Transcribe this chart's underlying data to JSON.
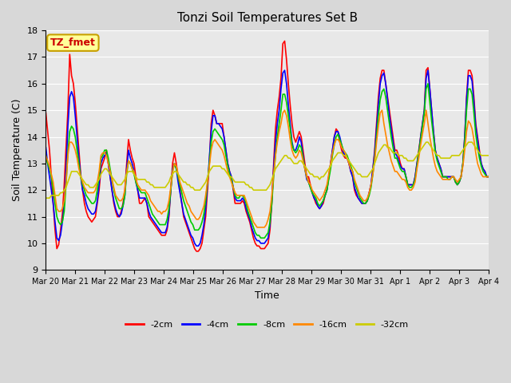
{
  "title": "Tonzi Soil Temperatures Set B",
  "xlabel": "Time",
  "ylabel": "Soil Temperature (C)",
  "ylim": [
    9.0,
    18.0
  ],
  "yticks": [
    9.0,
    10.0,
    11.0,
    12.0,
    13.0,
    14.0,
    15.0,
    16.0,
    17.0,
    18.0
  ],
  "bg_color": "#d8d8d8",
  "plot_bg_color": "#e8e8e8",
  "grid_color": "#ffffff",
  "legend_label": "TZ_fmet",
  "legend_box_color": "#ffff99",
  "legend_box_edge": "#c8a000",
  "series_colors": {
    "-2cm": "#ff0000",
    "-4cm": "#0000ff",
    "-8cm": "#00cc00",
    "-16cm": "#ff8800",
    "-32cm": "#cccc00"
  },
  "num_days": 15,
  "x_tick_labels": [
    "Mar 20",
    "Mar 21",
    "Mar 22",
    "Mar 23",
    "Mar 24",
    "Mar 25",
    "Mar 26",
    "Mar 27",
    "Mar 28",
    "Mar 29",
    "Mar 30",
    "Mar 31",
    "Apr 1",
    "Apr 2",
    "Apr 3",
    "Apr 4"
  ],
  "depth_2cm": [
    14.9,
    14.2,
    13.5,
    12.5,
    11.5,
    10.5,
    9.8,
    9.95,
    10.5,
    11.1,
    12.2,
    13.6,
    15.0,
    17.1,
    16.3,
    16.0,
    15.3,
    14.4,
    13.5,
    12.6,
    12.0,
    11.5,
    11.2,
    11.0,
    10.9,
    10.8,
    10.9,
    11.0,
    11.5,
    12.0,
    12.8,
    13.0,
    13.2,
    13.5,
    13.0,
    12.5,
    12.0,
    11.5,
    11.2,
    11.0,
    11.0,
    11.2,
    11.5,
    12.0,
    13.0,
    13.9,
    13.5,
    13.2,
    13.0,
    12.5,
    12.0,
    11.5,
    11.5,
    11.6,
    11.7,
    11.5,
    11.0,
    10.9,
    10.8,
    10.7,
    10.6,
    10.5,
    10.4,
    10.3,
    10.3,
    10.3,
    10.5,
    11.0,
    12.0,
    13.0,
    13.4,
    13.0,
    12.5,
    12.0,
    11.5,
    11.0,
    10.8,
    10.6,
    10.4,
    10.2,
    10.0,
    9.8,
    9.7,
    9.7,
    9.8,
    10.0,
    10.5,
    11.0,
    12.0,
    13.0,
    14.5,
    15.0,
    14.8,
    14.5,
    14.5,
    14.5,
    14.5,
    14.0,
    13.5,
    13.0,
    12.7,
    12.5,
    12.0,
    11.5,
    11.5,
    11.5,
    11.5,
    11.6,
    11.5,
    11.2,
    11.0,
    10.8,
    10.5,
    10.2,
    10.0,
    9.9,
    9.9,
    9.8,
    9.8,
    9.8,
    9.9,
    10.0,
    10.5,
    11.5,
    13.0,
    14.3,
    15.0,
    15.5,
    16.2,
    17.5,
    17.6,
    16.9,
    16.0,
    15.2,
    14.5,
    14.0,
    13.8,
    14.0,
    14.2,
    14.0,
    13.5,
    13.0,
    12.5,
    12.5,
    12.2,
    11.9,
    11.7,
    11.5,
    11.4,
    11.3,
    11.4,
    11.5,
    11.8,
    12.0,
    12.5,
    13.0,
    13.5,
    14.0,
    14.3,
    14.2,
    13.8,
    13.5,
    13.3,
    13.2,
    13.2,
    13.0,
    12.7,
    12.5,
    12.0,
    11.8,
    11.7,
    11.6,
    11.5,
    11.5,
    11.5,
    11.6,
    11.9,
    12.2,
    12.8,
    13.5,
    14.5,
    15.5,
    16.2,
    16.5,
    16.5,
    16.0,
    15.5,
    15.0,
    14.5,
    14.0,
    13.5,
    13.5,
    13.3,
    13.0,
    12.8,
    12.8,
    12.5,
    12.2,
    12.2,
    12.2,
    12.2,
    12.5,
    13.0,
    13.5,
    14.0,
    14.5,
    15.0,
    16.5,
    16.6,
    15.8,
    15.0,
    14.2,
    13.5,
    13.2,
    13.0,
    12.8,
    12.5,
    12.5,
    12.5,
    12.5,
    12.5,
    12.5,
    12.5,
    12.3,
    12.2,
    12.3,
    12.5,
    13.0,
    14.0,
    15.5,
    16.5,
    16.5,
    16.3,
    15.5,
    14.5,
    14.0,
    13.5,
    13.0,
    12.8,
    12.7,
    12.5,
    12.5
  ],
  "depth_4cm": [
    13.6,
    13.0,
    12.5,
    12.0,
    11.5,
    10.8,
    10.2,
    10.1,
    10.3,
    10.8,
    11.5,
    12.8,
    14.4,
    15.5,
    15.7,
    15.5,
    14.8,
    14.0,
    13.2,
    12.5,
    12.0,
    11.8,
    11.5,
    11.3,
    11.2,
    11.1,
    11.1,
    11.2,
    11.6,
    12.2,
    13.0,
    13.2,
    13.3,
    13.4,
    13.0,
    12.5,
    12.0,
    11.6,
    11.3,
    11.1,
    11.0,
    11.1,
    11.4,
    11.8,
    12.8,
    13.5,
    13.2,
    13.0,
    12.7,
    12.3,
    12.0,
    11.7,
    11.7,
    11.7,
    11.7,
    11.5,
    11.2,
    11.0,
    10.9,
    10.8,
    10.7,
    10.6,
    10.5,
    10.4,
    10.4,
    10.4,
    10.6,
    11.1,
    12.0,
    12.8,
    13.0,
    12.8,
    12.3,
    11.9,
    11.5,
    11.1,
    10.9,
    10.7,
    10.5,
    10.3,
    10.2,
    10.0,
    9.9,
    9.9,
    10.0,
    10.3,
    10.7,
    11.3,
    12.2,
    13.2,
    14.2,
    14.8,
    14.8,
    14.5,
    14.5,
    14.4,
    14.3,
    14.0,
    13.5,
    13.0,
    12.7,
    12.5,
    12.1,
    11.7,
    11.6,
    11.6,
    11.6,
    11.7,
    11.6,
    11.3,
    11.1,
    10.9,
    10.6,
    10.4,
    10.2,
    10.1,
    10.1,
    10.0,
    10.0,
    10.0,
    10.1,
    10.2,
    10.7,
    11.6,
    12.8,
    13.8,
    14.5,
    15.0,
    15.8,
    16.4,
    16.5,
    16.0,
    15.2,
    14.5,
    13.8,
    13.5,
    13.5,
    13.7,
    14.0,
    13.8,
    13.3,
    12.8,
    12.4,
    12.3,
    12.1,
    11.9,
    11.7,
    11.6,
    11.4,
    11.3,
    11.4,
    11.6,
    11.8,
    12.0,
    12.5,
    13.0,
    13.5,
    14.0,
    14.2,
    14.2,
    14.0,
    13.7,
    13.4,
    13.3,
    13.2,
    13.0,
    12.7,
    12.5,
    12.1,
    11.9,
    11.7,
    11.6,
    11.5,
    11.5,
    11.5,
    11.6,
    11.9,
    12.2,
    12.8,
    13.4,
    14.3,
    15.2,
    16.0,
    16.3,
    16.4,
    16.0,
    15.4,
    14.8,
    14.3,
    13.8,
    13.4,
    13.3,
    13.1,
    12.9,
    12.8,
    12.8,
    12.5,
    12.2,
    12.2,
    12.2,
    12.2,
    12.5,
    13.0,
    13.4,
    14.0,
    14.5,
    15.0,
    16.2,
    16.5,
    15.8,
    15.0,
    14.2,
    13.5,
    13.2,
    13.0,
    12.8,
    12.5,
    12.5,
    12.5,
    12.5,
    12.5,
    12.5,
    12.5,
    12.3,
    12.2,
    12.3,
    12.5,
    13.0,
    14.0,
    15.4,
    16.3,
    16.3,
    16.1,
    15.3,
    14.4,
    13.9,
    13.4,
    13.0,
    12.8,
    12.7,
    12.5,
    12.5
  ],
  "depth_8cm": [
    13.3,
    13.0,
    12.8,
    12.5,
    12.0,
    11.5,
    11.0,
    10.8,
    10.7,
    10.8,
    11.2,
    12.2,
    13.4,
    14.2,
    14.4,
    14.3,
    14.0,
    13.5,
    13.0,
    12.5,
    12.2,
    12.0,
    11.8,
    11.7,
    11.6,
    11.5,
    11.5,
    11.6,
    12.0,
    12.5,
    13.2,
    13.3,
    13.5,
    13.5,
    13.2,
    12.8,
    12.4,
    12.0,
    11.7,
    11.5,
    11.3,
    11.3,
    11.4,
    11.8,
    12.6,
    13.1,
    13.0,
    12.8,
    12.6,
    12.3,
    12.1,
    12.0,
    11.9,
    11.9,
    11.9,
    11.7,
    11.5,
    11.3,
    11.1,
    11.0,
    10.9,
    10.8,
    10.7,
    10.7,
    10.7,
    10.7,
    10.9,
    11.3,
    12.0,
    12.7,
    13.0,
    12.8,
    12.5,
    12.2,
    11.9,
    11.6,
    11.4,
    11.2,
    11.0,
    10.8,
    10.7,
    10.5,
    10.5,
    10.5,
    10.6,
    10.8,
    11.1,
    11.6,
    12.3,
    13.0,
    13.8,
    14.2,
    14.3,
    14.2,
    14.1,
    14.0,
    13.9,
    13.7,
    13.3,
    12.9,
    12.6,
    12.4,
    12.1,
    11.8,
    11.7,
    11.7,
    11.8,
    11.8,
    11.7,
    11.5,
    11.2,
    11.0,
    10.8,
    10.6,
    10.4,
    10.3,
    10.3,
    10.2,
    10.2,
    10.2,
    10.3,
    10.4,
    10.8,
    11.5,
    12.5,
    13.3,
    14.0,
    14.5,
    15.0,
    15.6,
    15.6,
    15.3,
    14.8,
    14.3,
    13.7,
    13.5,
    13.4,
    13.5,
    13.7,
    13.6,
    13.2,
    12.8,
    12.5,
    12.3,
    12.1,
    11.9,
    11.8,
    11.7,
    11.5,
    11.4,
    11.5,
    11.6,
    11.8,
    12.0,
    12.4,
    12.8,
    13.3,
    13.7,
    14.0,
    14.1,
    13.9,
    13.7,
    13.5,
    13.4,
    13.3,
    13.1,
    12.9,
    12.7,
    12.3,
    12.1,
    11.9,
    11.7,
    11.6,
    11.5,
    11.5,
    11.6,
    11.8,
    12.1,
    12.6,
    13.2,
    14.0,
    14.8,
    15.4,
    15.7,
    15.8,
    15.5,
    15.0,
    14.5,
    14.0,
    13.6,
    13.2,
    13.2,
    13.0,
    12.8,
    12.7,
    12.7,
    12.5,
    12.2,
    12.1,
    12.1,
    12.2,
    12.4,
    12.9,
    13.4,
    13.9,
    14.4,
    14.9,
    15.8,
    16.0,
    15.3,
    14.6,
    14.0,
    13.4,
    13.1,
    12.9,
    12.7,
    12.5,
    12.5,
    12.5,
    12.4,
    12.4,
    12.5,
    12.5,
    12.3,
    12.2,
    12.3,
    12.5,
    13.0,
    13.8,
    15.0,
    15.8,
    15.8,
    15.6,
    14.9,
    14.1,
    13.6,
    13.2,
    12.9,
    12.7,
    12.6,
    12.5,
    12.5
  ],
  "depth_16cm": [
    13.3,
    13.1,
    12.9,
    12.6,
    12.3,
    11.8,
    11.3,
    11.2,
    11.2,
    11.3,
    11.6,
    12.3,
    13.3,
    13.8,
    13.8,
    13.7,
    13.5,
    13.2,
    12.8,
    12.5,
    12.3,
    12.1,
    12.0,
    11.9,
    11.9,
    11.9,
    11.9,
    12.0,
    12.3,
    12.7,
    13.3,
    13.4,
    13.4,
    13.3,
    13.0,
    12.7,
    12.4,
    12.1,
    11.8,
    11.7,
    11.6,
    11.6,
    11.7,
    12.0,
    12.7,
    13.1,
    13.0,
    12.8,
    12.7,
    12.4,
    12.2,
    12.1,
    12.0,
    12.0,
    12.0,
    11.9,
    11.8,
    11.6,
    11.5,
    11.4,
    11.3,
    11.2,
    11.2,
    11.1,
    11.2,
    11.2,
    11.3,
    11.6,
    12.1,
    12.7,
    13.0,
    12.9,
    12.6,
    12.3,
    12.1,
    11.9,
    11.7,
    11.5,
    11.4,
    11.2,
    11.1,
    11.0,
    10.9,
    10.9,
    11.0,
    11.2,
    11.4,
    11.8,
    12.3,
    12.9,
    13.5,
    13.8,
    13.9,
    13.8,
    13.7,
    13.6,
    13.5,
    13.3,
    13.0,
    12.7,
    12.5,
    12.3,
    12.1,
    11.9,
    11.8,
    11.8,
    11.8,
    11.8,
    11.8,
    11.6,
    11.4,
    11.2,
    11.0,
    10.8,
    10.7,
    10.6,
    10.6,
    10.6,
    10.6,
    10.6,
    10.7,
    10.9,
    11.2,
    11.8,
    12.6,
    13.3,
    13.8,
    14.2,
    14.5,
    14.9,
    15.0,
    14.8,
    14.4,
    13.9,
    13.5,
    13.3,
    13.2,
    13.3,
    13.5,
    13.4,
    13.1,
    12.8,
    12.5,
    12.3,
    12.2,
    12.0,
    11.9,
    11.8,
    11.7,
    11.6,
    11.7,
    11.8,
    12.0,
    12.2,
    12.6,
    13.0,
    13.4,
    13.7,
    13.9,
    13.9,
    13.8,
    13.6,
    13.5,
    13.4,
    13.2,
    13.0,
    12.8,
    12.7,
    12.4,
    12.2,
    12.0,
    11.8,
    11.7,
    11.6,
    11.6,
    11.7,
    11.9,
    12.2,
    12.6,
    13.1,
    13.8,
    14.4,
    14.9,
    15.0,
    14.5,
    14.1,
    13.7,
    13.4,
    13.1,
    12.9,
    12.7,
    12.7,
    12.6,
    12.5,
    12.4,
    12.4,
    12.3,
    12.1,
    12.0,
    12.0,
    12.1,
    12.3,
    12.8,
    13.2,
    13.7,
    14.1,
    14.5,
    15.0,
    14.5,
    14.0,
    13.6,
    13.2,
    12.9,
    12.7,
    12.6,
    12.5,
    12.4,
    12.4,
    12.4,
    12.4,
    12.4,
    12.5,
    12.5,
    12.4,
    12.3,
    12.4,
    12.5,
    12.9,
    13.5,
    14.2,
    14.6,
    14.5,
    14.3,
    13.9,
    13.4,
    13.0,
    12.8,
    12.6,
    12.5,
    12.5,
    12.5,
    12.5
  ],
  "depth_32cm": [
    11.7,
    11.7,
    11.7,
    11.8,
    11.8,
    11.8,
    11.8,
    11.8,
    11.9,
    11.9,
    12.0,
    12.1,
    12.3,
    12.5,
    12.7,
    12.7,
    12.7,
    12.7,
    12.6,
    12.5,
    12.4,
    12.3,
    12.2,
    12.2,
    12.1,
    12.1,
    12.1,
    12.2,
    12.3,
    12.4,
    12.6,
    12.7,
    12.8,
    12.8,
    12.7,
    12.6,
    12.5,
    12.4,
    12.3,
    12.2,
    12.2,
    12.2,
    12.3,
    12.4,
    12.6,
    12.7,
    12.7,
    12.7,
    12.6,
    12.5,
    12.4,
    12.4,
    12.4,
    12.4,
    12.4,
    12.3,
    12.3,
    12.2,
    12.2,
    12.1,
    12.1,
    12.1,
    12.1,
    12.1,
    12.1,
    12.1,
    12.2,
    12.3,
    12.5,
    12.6,
    12.7,
    12.7,
    12.6,
    12.5,
    12.4,
    12.3,
    12.3,
    12.2,
    12.2,
    12.1,
    12.1,
    12.0,
    12.0,
    12.0,
    12.0,
    12.1,
    12.2,
    12.3,
    12.5,
    12.7,
    12.8,
    12.9,
    12.9,
    12.9,
    12.9,
    12.9,
    12.8,
    12.8,
    12.7,
    12.6,
    12.5,
    12.5,
    12.4,
    12.3,
    12.3,
    12.3,
    12.3,
    12.3,
    12.3,
    12.2,
    12.2,
    12.1,
    12.1,
    12.0,
    12.0,
    12.0,
    12.0,
    12.0,
    12.0,
    12.0,
    12.0,
    12.1,
    12.2,
    12.4,
    12.6,
    12.8,
    12.9,
    13.0,
    13.1,
    13.2,
    13.3,
    13.3,
    13.2,
    13.2,
    13.1,
    13.0,
    13.0,
    13.0,
    13.1,
    13.1,
    13.0,
    12.9,
    12.8,
    12.7,
    12.6,
    12.6,
    12.5,
    12.5,
    12.5,
    12.4,
    12.5,
    12.5,
    12.6,
    12.7,
    12.8,
    12.9,
    13.1,
    13.2,
    13.3,
    13.4,
    13.4,
    13.4,
    13.3,
    13.3,
    13.2,
    13.1,
    13.0,
    12.9,
    12.8,
    12.7,
    12.6,
    12.6,
    12.5,
    12.5,
    12.5,
    12.5,
    12.6,
    12.7,
    12.8,
    13.0,
    13.2,
    13.4,
    13.5,
    13.6,
    13.7,
    13.7,
    13.6,
    13.6,
    13.5,
    13.4,
    13.4,
    13.4,
    13.3,
    13.3,
    13.3,
    13.2,
    13.2,
    13.1,
    13.1,
    13.1,
    13.1,
    13.2,
    13.3,
    13.4,
    13.5,
    13.6,
    13.7,
    13.8,
    13.8,
    13.7,
    13.6,
    13.5,
    13.4,
    13.3,
    13.3,
    13.2,
    13.2,
    13.2,
    13.2,
    13.2,
    13.2,
    13.3,
    13.3,
    13.3,
    13.3,
    13.3,
    13.4,
    13.5,
    13.6,
    13.7,
    13.8,
    13.8,
    13.8,
    13.7,
    13.6,
    13.5,
    13.4,
    13.3,
    13.3,
    13.3,
    13.3,
    13.3
  ]
}
